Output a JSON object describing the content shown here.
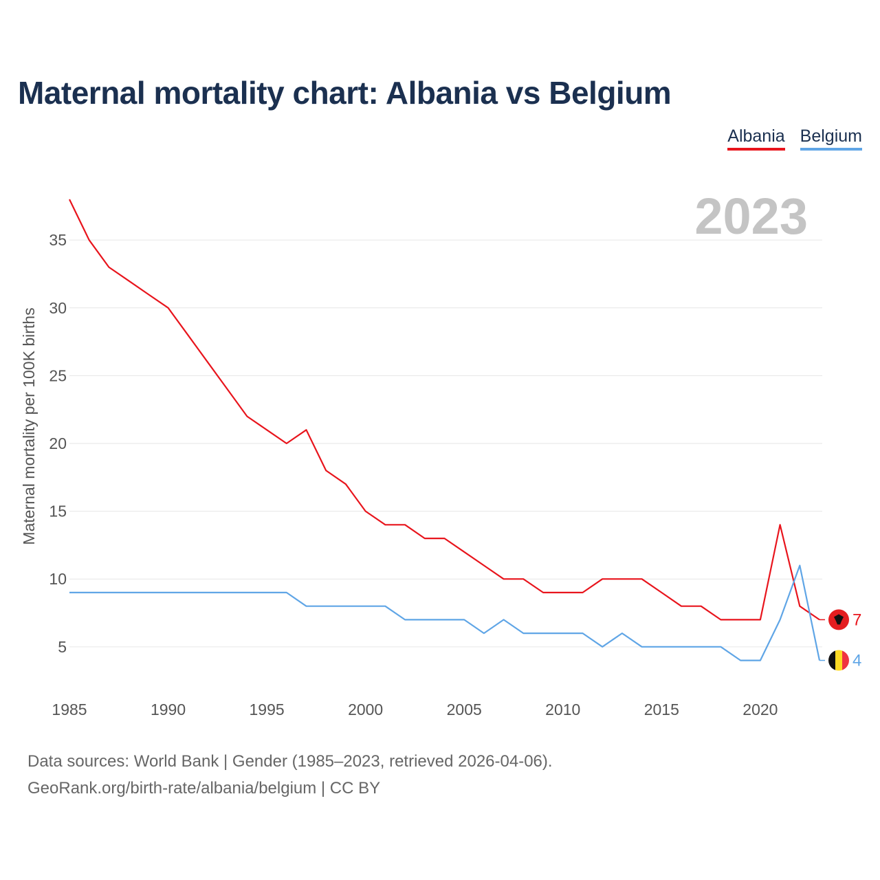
{
  "title": "Maternal mortality chart: Albania vs Belgium",
  "legend": [
    {
      "label": "Albania",
      "color": "#e8141c"
    },
    {
      "label": "Belgium",
      "color": "#5fa5e6"
    }
  ],
  "footer": {
    "line1": "Data sources: World Bank | Gender (1985–2023, retrieved 2026-04-06).",
    "line2": "GeoRank.org/birth-rate/albania/belgium | CC BY"
  },
  "chart_data": {
    "type": "line",
    "title": "Maternal mortality chart: Albania vs Belgium",
    "ylabel": "Maternal mortality per 100K births",
    "xlabel": "",
    "year_label": "2023",
    "xlim": [
      1985,
      2023
    ],
    "ylim": [
      2,
      38
    ],
    "x_ticks": [
      1985,
      1990,
      1995,
      2000,
      2005,
      2010,
      2015,
      2020
    ],
    "y_ticks": [
      5,
      10,
      15,
      20,
      25,
      30,
      35
    ],
    "grid": true,
    "x": [
      1985,
      1986,
      1987,
      1988,
      1989,
      1990,
      1991,
      1992,
      1993,
      1994,
      1995,
      1996,
      1997,
      1998,
      1999,
      2000,
      2001,
      2002,
      2003,
      2004,
      2005,
      2006,
      2007,
      2008,
      2009,
      2010,
      2011,
      2012,
      2013,
      2014,
      2015,
      2016,
      2017,
      2018,
      2019,
      2020,
      2021,
      2022,
      2023
    ],
    "series": [
      {
        "name": "Albania",
        "color": "#e8141c",
        "end_label": "7",
        "values": [
          38,
          35,
          33,
          32,
          31,
          30,
          28,
          26,
          24,
          22,
          21,
          20,
          21,
          18,
          17,
          15,
          14,
          14,
          13,
          13,
          12,
          11,
          10,
          10,
          9,
          9,
          9,
          10,
          10,
          10,
          9,
          8,
          8,
          7,
          7,
          7,
          14,
          8,
          7
        ]
      },
      {
        "name": "Belgium",
        "color": "#5fa5e6",
        "end_label": "4",
        "values": [
          9,
          9,
          9,
          9,
          9,
          9,
          9,
          9,
          9,
          9,
          9,
          9,
          8,
          8,
          8,
          8,
          8,
          7,
          7,
          7,
          7,
          6,
          7,
          6,
          6,
          6,
          6,
          5,
          6,
          5,
          5,
          5,
          5,
          5,
          4,
          4,
          7,
          11,
          4
        ]
      }
    ]
  }
}
